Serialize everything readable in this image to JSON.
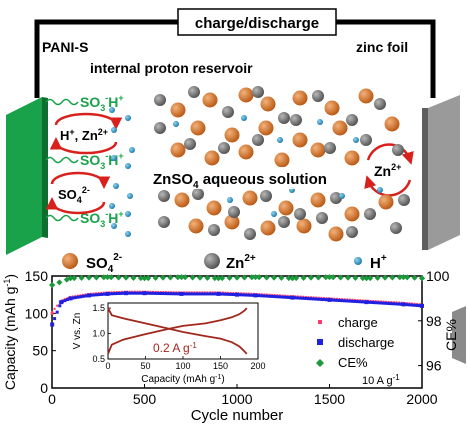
{
  "schematic": {
    "charge_label": "charge/discharge",
    "cathode_label": "PANI-S",
    "anode_label": "zinc foil",
    "reservoir_label": "internal proton reservoir",
    "group_label": "SO",
    "group_sub": "3",
    "group_sup": "-",
    "group_tail": "H",
    "group_tail_sup": "+",
    "ion_pair_a": "H",
    "ion_pair_a_sup": "+",
    "ion_pair_sep": ", Zn",
    "ion_pair_b_sup": "2+",
    "sulfate_label": "SO",
    "sulfate_sub": "4",
    "sulfate_sup": "2-",
    "solution_label_a": "ZnSO",
    "solution_sub": "4",
    "solution_label_b": " aqueous solution",
    "zn_label": "Zn",
    "zn_sup": "2+"
  },
  "legend": {
    "sulfate": "SO",
    "sulfate_sub": "4",
    "sulfate_sup": "2-",
    "zinc": "Zn",
    "zinc_sup": "2+",
    "proton": "H",
    "proton_sup": "+"
  },
  "colors": {
    "cathode": "#19a24a",
    "anode": "#9a9a9a",
    "sulfate": "#cc6a1c",
    "zinc": "#6b6b6b",
    "proton": "#1f8fc2",
    "charge_series": "#ff3a6e",
    "discharge_series": "#2020e0",
    "ce_series": "#1a9a3a",
    "inset_curve": "#a0281c"
  },
  "chart_data": [
    {
      "type": "scatter",
      "xlabel": "Cycle number",
      "ylabel": "Capacity (mAh g",
      "ylabel_sup": "-1",
      "ylabel_tail": ")",
      "y2label": "CE%",
      "xlim": [
        0,
        2000
      ],
      "ylim": [
        0,
        150
      ],
      "y2lim": [
        95,
        100
      ],
      "x_ticks": [
        0,
        500,
        1000,
        1500,
        2000
      ],
      "y_ticks": [
        0,
        50,
        100,
        150
      ],
      "y2_ticks": [
        96,
        98,
        100
      ],
      "annotation": "10 A g",
      "annotation_sup": "-1",
      "legend_position": "right",
      "series": [
        {
          "name": "charge",
          "axis": "left",
          "x": [
            1,
            50,
            100,
            200,
            300,
            400,
            500,
            700,
            900,
            1000,
            1100,
            1300,
            1500,
            1700,
            1900,
            2000
          ],
          "y": [
            100,
            115,
            120,
            124,
            126,
            127,
            127,
            126,
            126,
            125,
            124,
            121,
            118,
            115,
            112,
            110
          ]
        },
        {
          "name": "discharge",
          "axis": "left",
          "x": [
            1,
            50,
            100,
            200,
            300,
            400,
            500,
            700,
            900,
            1000,
            1100,
            1300,
            1500,
            1700,
            1900,
            2000
          ],
          "y": [
            85,
            115,
            120,
            124,
            126,
            127,
            127,
            126,
            126,
            125,
            124,
            121,
            118,
            115,
            112,
            110
          ]
        },
        {
          "name": "CE%",
          "axis": "right",
          "x": [
            1,
            100,
            300,
            500,
            700,
            900,
            1100,
            1300,
            1500,
            1700,
            1900,
            2000
          ],
          "y": [
            99.6,
            99.9,
            99.95,
            99.9,
            99.95,
            99.9,
            99.95,
            99.9,
            99.95,
            99.9,
            99.95,
            99.9
          ]
        }
      ]
    },
    {
      "type": "line",
      "xlabel": "Capacity (mAh g",
      "xlabel_sup": "-1",
      "xlabel_tail": ")",
      "ylabel": "V vs. Zn",
      "xlim": [
        0,
        200
      ],
      "ylim": [
        0.5,
        1.6
      ],
      "x_ticks": [
        0,
        50,
        100,
        150,
        200
      ],
      "y_ticks": [
        0.5,
        1.0,
        1.5
      ],
      "y_tick_labels": [
        "0.5",
        "1.0",
        "1.5"
      ],
      "annotation": "0.2 A g",
      "annotation_sup": "-1",
      "series": [
        {
          "x": [
            0,
            5,
            20,
            50,
            80,
            100,
            130,
            150,
            165,
            175,
            182,
            185
          ],
          "y": [
            1.5,
            1.36,
            1.3,
            1.2,
            1.1,
            1.03,
            0.95,
            0.9,
            0.83,
            0.75,
            0.65,
            0.6
          ]
        },
        {
          "x": [
            0,
            5,
            20,
            50,
            80,
            100,
            130,
            150,
            165,
            175,
            182,
            185
          ],
          "y": [
            0.6,
            0.78,
            0.88,
            0.99,
            1.09,
            1.15,
            1.2,
            1.26,
            1.32,
            1.38,
            1.45,
            1.5
          ]
        }
      ]
    }
  ]
}
